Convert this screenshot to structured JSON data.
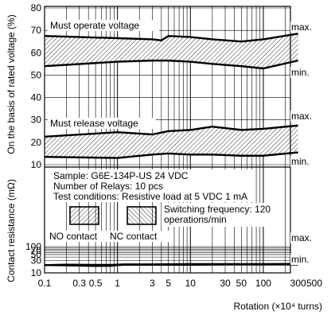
{
  "chart_data": [
    {
      "type": "area",
      "panel": "voltage",
      "x_scale": "log",
      "ylabel": "On the basis of rated voltage (%)",
      "ylim": [
        10,
        80
      ],
      "yticks": [
        "80",
        "70",
        "60",
        "50",
        "40",
        "30",
        "20",
        "10"
      ],
      "ytick_values": [
        80,
        70,
        60,
        50,
        40,
        30,
        20,
        10
      ],
      "xlim": [
        0.1,
        500
      ],
      "grid": true,
      "bands": [
        {
          "name": "Must operate voltage",
          "x": [
            0.1,
            1,
            3,
            4,
            5,
            10,
            20,
            50,
            100,
            300
          ],
          "max": [
            67.5,
            66.5,
            66.0,
            65.5,
            67.5,
            67.0,
            66.0,
            65.0,
            66.0,
            68.5
          ],
          "min": [
            54.0,
            56.0,
            56.5,
            56.5,
            56.5,
            56.0,
            55.0,
            54.0,
            53.0,
            56.5
          ]
        },
        {
          "name": "Must release voltage",
          "x": [
            0.1,
            1,
            3,
            5,
            10,
            20,
            50,
            100,
            300
          ],
          "max": [
            22.5,
            24.5,
            23.5,
            25.0,
            25.5,
            27.0,
            25.5,
            26.0,
            27.5
          ],
          "min": [
            13.5,
            13.0,
            14.5,
            15.0,
            14.5,
            14.5,
            14.0,
            14.0,
            15.5
          ]
        }
      ],
      "annotations": [
        "Must operate voltage",
        "Must release voltage",
        "max.",
        "min.",
        "max.",
        "min."
      ]
    },
    {
      "type": "area",
      "panel": "contact-resistance",
      "x_scale": "log",
      "y_scale": "log",
      "ylabel": "Contact resistance (mΩ)",
      "xlabel": "Rotation (×10⁴ turns)",
      "ylim": [
        10,
        100
      ],
      "yticks": [
        "100",
        "70",
        "50",
        "30",
        "10"
      ],
      "ytick_values": [
        100,
        70,
        50,
        30,
        10
      ],
      "xticks": [
        "0.1",
        "0.3",
        "0.5",
        "1",
        "3",
        "5",
        "10",
        "30",
        "50",
        "100",
        "300",
        "500"
      ],
      "xtick_values": [
        0.1,
        0.3,
        0.5,
        1,
        3,
        5,
        10,
        30,
        50,
        100,
        300,
        500
      ],
      "xlim": [
        0.1,
        500
      ],
      "grid": true,
      "series": [
        {
          "name": "NO contact",
          "x": [
            0.1,
            0.2,
            0.5,
            0.8,
            1,
            1.2,
            3,
            10,
            30,
            100,
            300
          ],
          "max": [
            20.0,
            21.0,
            20.5,
            20.5,
            21.0,
            21.5,
            21.5,
            22.0,
            22.0,
            22.0,
            22.5
          ],
          "min": [
            19.5,
            19.0,
            18.0,
            18.2,
            19.5,
            20.0,
            20.0,
            20.0,
            20.5,
            20.5,
            20.5
          ]
        },
        {
          "name": "NC contact",
          "x": [
            0.1,
            0.2,
            0.5,
            0.8,
            1,
            1.2,
            3,
            10,
            30,
            100,
            300
          ],
          "max": [
            20.0,
            20.5,
            20.0,
            19.5,
            21.0,
            21.0,
            21.0,
            21.5,
            21.5,
            21.5,
            22.0
          ],
          "min": [
            19.5,
            19.2,
            18.5,
            18.5,
            19.5,
            20.0,
            20.0,
            20.2,
            20.5,
            20.5,
            20.5
          ]
        }
      ],
      "notes": {
        "sample": "Sample: G6E-134P-US  24 VDC",
        "number": "Number of Relays: 10 pcs",
        "conditions": "Test conditions: Resistive load at 5 VDC 1 mA",
        "frequency_1": "Switching frequency: 120",
        "frequency_2": "operations/min"
      },
      "legend": [
        "NO contact",
        "NC contact"
      ],
      "annotations": [
        "max.",
        "min."
      ]
    }
  ]
}
